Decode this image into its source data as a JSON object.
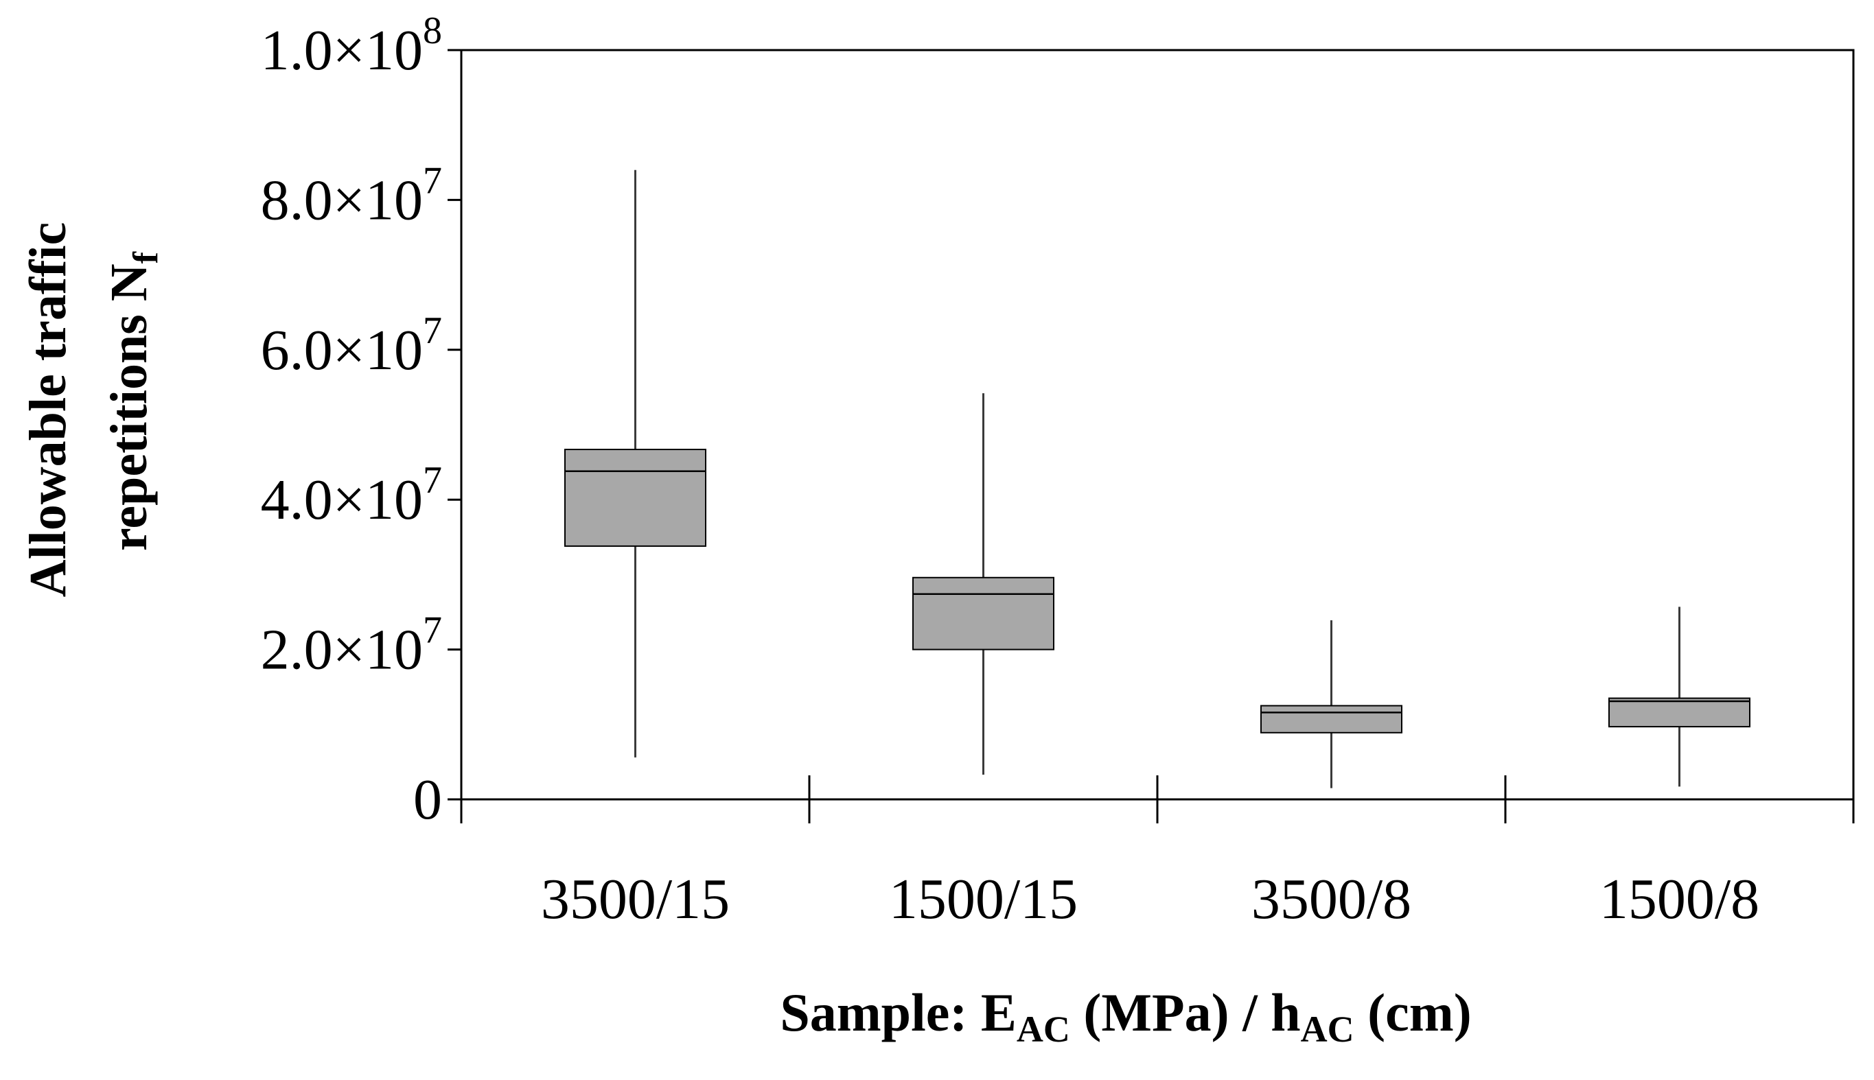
{
  "chart_data": {
    "type": "boxplot",
    "title": "",
    "xlabel": {
      "main": "Sample: E",
      "sub1": "AC",
      "mid": " (MPa) / h",
      "sub2": "AC",
      "end": " (cm)"
    },
    "ylabel": {
      "line1": "Allowable traffic",
      "line2_main": "repetitions N",
      "line2_sub": "f"
    },
    "ylim": [
      0,
      100000000
    ],
    "yticks": [
      {
        "value": 0,
        "mantissa": "0",
        "exp": ""
      },
      {
        "value": 20000000,
        "mantissa": "2.0×10",
        "exp": "7"
      },
      {
        "value": 40000000,
        "mantissa": "4.0×10",
        "exp": "7"
      },
      {
        "value": 60000000,
        "mantissa": "6.0×10",
        "exp": "7"
      },
      {
        "value": 80000000,
        "mantissa": "8.0×10",
        "exp": "7"
      },
      {
        "value": 100000000,
        "mantissa": "1.0×10",
        "exp": "8"
      }
    ],
    "categories": [
      "3500/15",
      "1500/15",
      "3500/8",
      "1500/8"
    ],
    "boxes": [
      {
        "category": "3500/15",
        "min": 5600000,
        "q1": 33800000,
        "median": 43800000,
        "q3": 46700000,
        "max": 84000000
      },
      {
        "category": "1500/15",
        "min": 3300000,
        "q1": 20000000,
        "median": 27400000,
        "q3": 29600000,
        "max": 54200000
      },
      {
        "category": "3500/8",
        "min": 1500000,
        "q1": 8900000,
        "median": 11600000,
        "q3": 12500000,
        "max": 23900000
      },
      {
        "category": "1500/8",
        "min": 1700000,
        "q1": 9700000,
        "median": 13100000,
        "q3": 13500000,
        "max": 25700000
      }
    ],
    "grid": false,
    "legend": "none",
    "colors": {
      "box_fill": "#a8a8a8",
      "stroke": "#000000",
      "whisker": "#3a3a3a"
    }
  }
}
